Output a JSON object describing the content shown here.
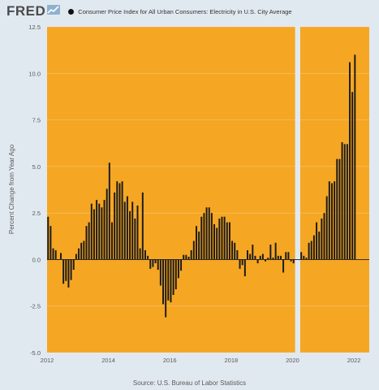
{
  "logo": {
    "text": "FRED",
    "icon": "chart-line-icon"
  },
  "legend": {
    "label": "Consumer Price Index for All Urban Consumers: Electricity in U.S. City Average",
    "marker_color": "#111111"
  },
  "source": "Source: U.S. Bureau of Labor Statistics",
  "colors": {
    "background": "#e1e9f0",
    "plot_fill": "#f5a623",
    "recession_gap": "#e1e9f0",
    "bars": "#1a1a1a",
    "zero_line": "#1a1a1a"
  },
  "chart_data": {
    "type": "bar",
    "title": "",
    "xlabel": "",
    "ylabel": "Percent Change from Year Ago",
    "ylim": [
      -5.0,
      12.5
    ],
    "yticks": [
      "12.5",
      "10.0",
      "7.5",
      "5.0",
      "2.5",
      "0.0",
      "-2.5",
      "-5.0"
    ],
    "xticks": [
      "2012",
      "2014",
      "2016",
      "2018",
      "2020",
      "2022"
    ],
    "grid": true,
    "legend_position": "top",
    "shaded_period": {
      "start": "2020-02",
      "end": "2020-04"
    },
    "x_start": "2012-01",
    "series": [
      {
        "name": "Consumer Price Index for All Urban Consumers: Electricity in U.S. City Average",
        "values": [
          2.3,
          1.8,
          0.6,
          0.5,
          0.0,
          0.35,
          -1.3,
          -1.15,
          -1.5,
          -1.1,
          -0.55,
          0.3,
          0.6,
          0.9,
          1.0,
          1.8,
          2.0,
          3.0,
          2.7,
          3.2,
          3.0,
          2.8,
          3.2,
          3.8,
          5.2,
          2.0,
          3.6,
          4.2,
          4.1,
          4.2,
          3.1,
          3.4,
          2.6,
          3.1,
          2.2,
          2.9,
          0.6,
          3.6,
          0.5,
          0.2,
          -0.5,
          -0.4,
          -0.2,
          -0.55,
          -1.4,
          -2.4,
          -3.1,
          -2.2,
          -2.3,
          -1.9,
          -1.6,
          -1.0,
          -0.6,
          0.25,
          0.25,
          0.15,
          0.5,
          1.0,
          1.8,
          1.5,
          2.3,
          2.5,
          2.8,
          2.8,
          2.5,
          1.9,
          1.7,
          2.2,
          2.3,
          2.3,
          2.0,
          2.0,
          1.0,
          0.9,
          0.5,
          -0.5,
          -0.3,
          -0.9,
          0.5,
          0.3,
          0.8,
          0.2,
          -0.2,
          0.2,
          0.3,
          -0.1,
          0.1,
          0.8,
          0.1,
          0.9,
          0.2,
          0.2,
          -0.7,
          0.4,
          0.4,
          -0.1,
          -0.2,
          0.4,
          0.2,
          0.1,
          0.9,
          1.0,
          1.3,
          2.0,
          1.5,
          2.2,
          2.5,
          3.4,
          4.2,
          4.1,
          4.2,
          5.4,
          5.4,
          6.3,
          6.2,
          6.2,
          10.6,
          9.0,
          11.0
        ]
      }
    ]
  }
}
